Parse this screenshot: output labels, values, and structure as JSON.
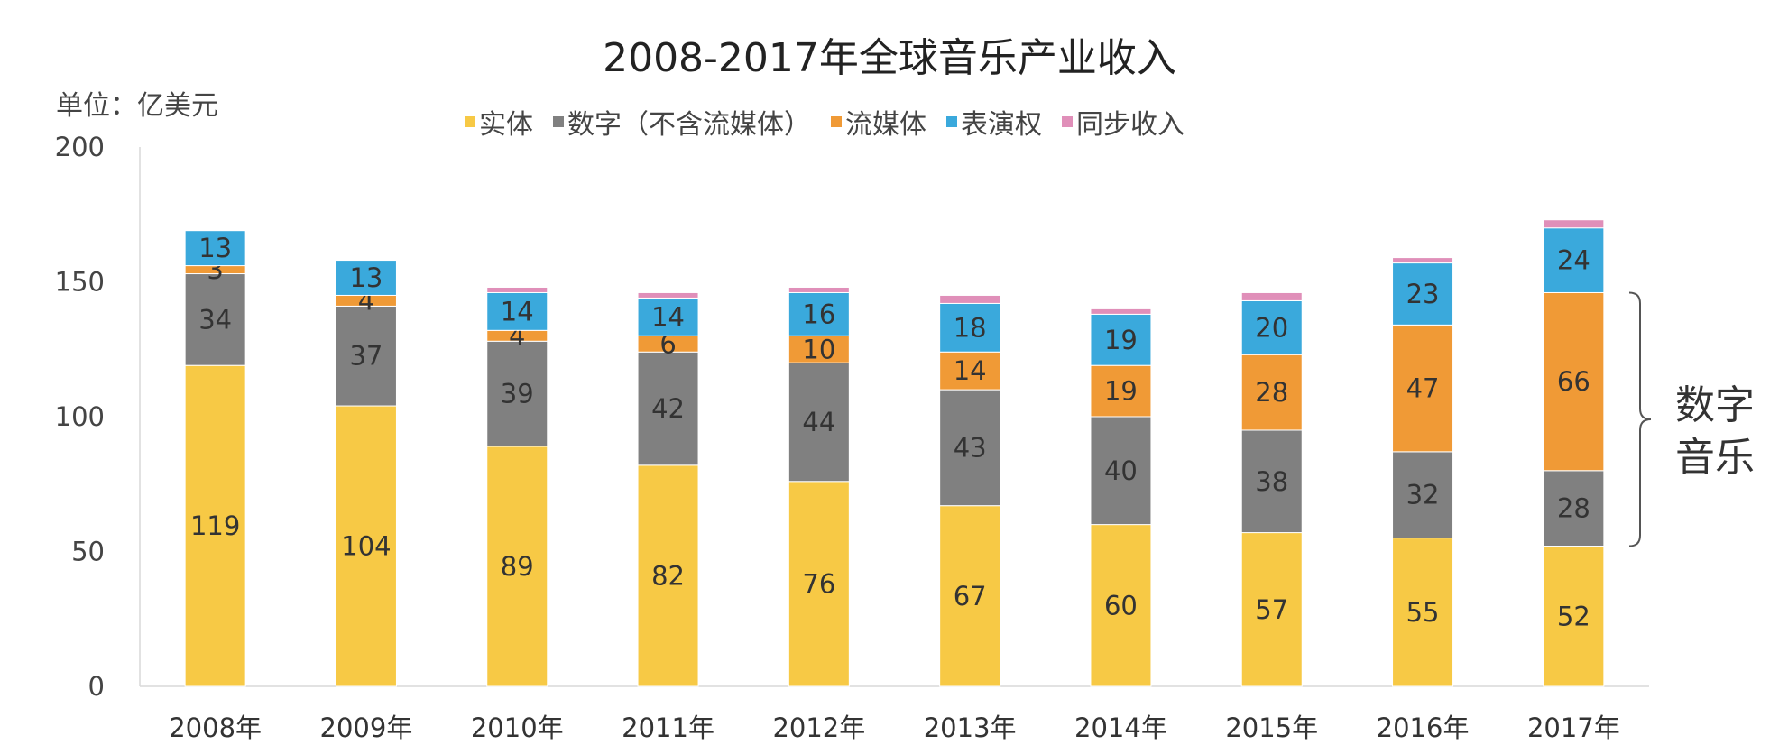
{
  "chart_data": {
    "type": "bar",
    "stacked": true,
    "title": "2008-2017年全球音乐产业收入",
    "unit_label": "单位：亿美元",
    "categories": [
      "2008年",
      "2009年",
      "2010年",
      "2011年",
      "2012年",
      "2013年",
      "2014年",
      "2015年",
      "2016年",
      "2017年"
    ],
    "ylim": [
      0,
      200
    ],
    "yticks": [
      0,
      50,
      100,
      150,
      200
    ],
    "grid": false,
    "legend_position": "top",
    "series": [
      {
        "name": "实体",
        "color": "#F7C945",
        "values": [
          119,
          104,
          89,
          82,
          76,
          67,
          60,
          57,
          55,
          52
        ]
      },
      {
        "name": "数字（不含流媒体）",
        "color": "#808080",
        "values": [
          34,
          37,
          39,
          42,
          44,
          43,
          40,
          38,
          32,
          28
        ]
      },
      {
        "name": "流媒体",
        "color": "#F09A36",
        "values": [
          3,
          4,
          4,
          6,
          10,
          14,
          19,
          28,
          47,
          66
        ]
      },
      {
        "name": "表演权",
        "color": "#3AA9DC",
        "values": [
          13,
          13,
          14,
          14,
          16,
          18,
          19,
          20,
          23,
          24
        ]
      },
      {
        "name": "同步收入",
        "color": "#E08FB9",
        "values": [
          0,
          0,
          2,
          2,
          2,
          3,
          2,
          3,
          2,
          3
        ]
      }
    ],
    "labeled_series": [
      0,
      1,
      2,
      3
    ],
    "annotation": {
      "text_lines": [
        "数字",
        "音乐"
      ],
      "brace_from": 52,
      "brace_to": 146
    }
  }
}
